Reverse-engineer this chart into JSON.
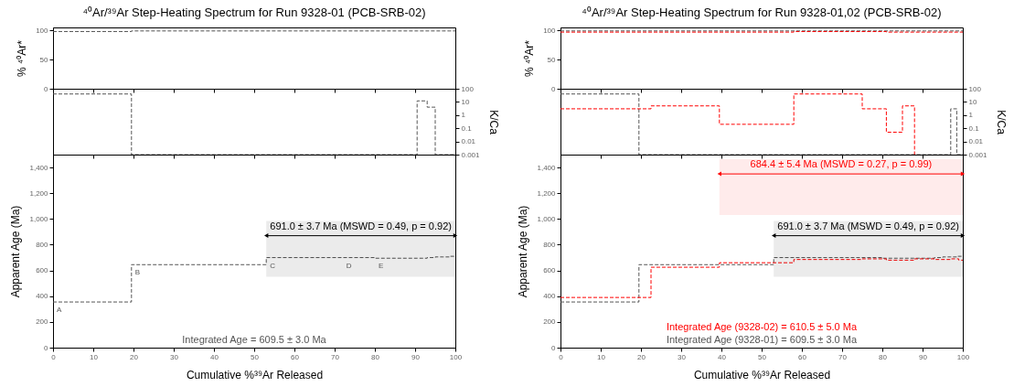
{
  "chart_data": [
    {
      "type": "step",
      "title": "⁴⁰Ar/³⁹Ar Step-Heating Spectrum for Run 9328-01 (PCB-SRB-02)",
      "ylabel": "% ⁴⁰Ar*",
      "xlim": [
        0,
        100
      ],
      "xticks": [
        0,
        10,
        20,
        30,
        40,
        50,
        60,
        70,
        80,
        90,
        100
      ],
      "ylim": [
        0,
        105
      ],
      "yticks": [
        0,
        50,
        100
      ],
      "tick_labels": "y",
      "line_style": "dashed",
      "series": [
        {
          "color": "#555555",
          "x": [
            0,
            19.5,
            53,
            72,
            80,
            87,
            90.5,
            93,
            95,
            97,
            98.5,
            100
          ],
          "values": [
            98,
            99,
            99,
            99,
            99,
            99,
            99,
            99,
            99,
            99,
            99,
            99
          ]
        }
      ]
    },
    {
      "type": "step",
      "ylabel": "K/Ca",
      "xlim": [
        0,
        100
      ],
      "xticks": [
        0,
        10,
        20,
        30,
        40,
        50,
        60,
        70,
        80,
        90,
        100
      ],
      "ylim": [
        0.001,
        100
      ],
      "yticks": [
        100,
        10,
        1,
        0.1,
        0.01,
        0.001
      ],
      "log": true,
      "tick_labels": "y",
      "line_style": "dashed",
      "series": [
        {
          "color": "#555555",
          "x": [
            0,
            19.5,
            53,
            72,
            80,
            87,
            90.5,
            93,
            95,
            97,
            98.5,
            100
          ],
          "values": [
            40,
            0.001,
            0.001,
            0.001,
            0.001,
            0.001,
            12,
            4,
            0.001,
            0.001,
            0.001,
            0.001
          ]
        }
      ]
    },
    {
      "type": "step",
      "xlabel": "Cumulative %³⁹Ar Released",
      "ylabel": "Apparent Age (Ma)",
      "xlim": [
        0,
        100
      ],
      "xticks": [
        0,
        10,
        20,
        30,
        40,
        50,
        60,
        70,
        80,
        90,
        100
      ],
      "ylim": [
        0,
        1500
      ],
      "yticks": [
        0,
        200,
        400,
        600,
        800,
        {
          "value": 1000,
          "label": "1,000"
        },
        {
          "value": 1200,
          "label": "1,200"
        },
        {
          "value": 1400,
          "label": "1,400"
        }
      ],
      "line_style": "dashed",
      "series": [
        {
          "color": "#555555",
          "x": [
            0,
            19.5,
            53,
            72,
            80,
            87,
            90.5,
            93,
            95,
            97,
            98.5,
            100
          ],
          "values": [
            355,
            645,
            700,
            700,
            695,
            695,
            695,
            700,
            705,
            705,
            710,
            710
          ],
          "value_labels": [
            "A",
            "B",
            "C",
            "D",
            "E",
            null,
            null,
            null,
            null,
            null,
            null,
            null
          ]
        }
      ],
      "bands": [
        {
          "axis": "x",
          "from": 53,
          "to": 100,
          "label": "691.0 ± 3.7 Ma (MSWD = 0.49, p = 0.92)",
          "color": "#000000"
        }
      ],
      "annotations": [
        "Integrated Age = 609.5 ± 3.0 Ma"
      ]
    },
    {
      "type": "step",
      "title": "⁴⁰Ar/³⁹Ar Step-Heating Spectrum for Run 9328-01,02 (PCB-SRB-02)",
      "ylabel": "% ⁴⁰Ar*",
      "xlim": [
        0,
        100
      ],
      "xticks": [
        0,
        10,
        20,
        30,
        40,
        50,
        60,
        70,
        80,
        90,
        100
      ],
      "ylim": [
        0,
        105
      ],
      "yticks": [
        0,
        50,
        100
      ],
      "tick_labels": "y",
      "line_style": "dashed",
      "series": [
        {
          "color": "#555555",
          "x": [
            0,
            19.5,
            53,
            72,
            80,
            87,
            90.5,
            93,
            95,
            97,
            98.5,
            100
          ],
          "values": [
            99,
            99,
            99,
            99,
            99,
            99,
            99,
            99,
            99,
            99,
            99,
            99
          ]
        },
        {
          "color": "#ff0000",
          "x": [
            0,
            22.5,
            39.5,
            58,
            75,
            81,
            88,
            93,
            97,
            99,
            100
          ],
          "values": [
            97,
            97,
            97,
            98,
            98,
            97,
            97,
            97,
            97,
            97,
            97
          ]
        }
      ]
    },
    {
      "type": "step",
      "ylabel": "K/Ca",
      "xlim": [
        0,
        100
      ],
      "xticks": [
        0,
        10,
        20,
        30,
        40,
        50,
        60,
        70,
        80,
        90,
        100
      ],
      "ylim": [
        0.001,
        100
      ],
      "yticks": [
        100,
        10,
        1,
        0.1,
        0.01,
        0.001
      ],
      "log": true,
      "tick_labels": "y",
      "line_style": "dashed",
      "series": [
        {
          "color": "#555555",
          "x": [
            0,
            19.5,
            53,
            72,
            80,
            87,
            90.5,
            93,
            95,
            97,
            98.5,
            100
          ],
          "values": [
            40,
            0.001,
            0.001,
            0.001,
            0.001,
            0.001,
            0.001,
            0.001,
            0.001,
            3,
            0.001,
            0.001
          ]
        },
        {
          "color": "#ff0000",
          "x": [
            0,
            22.5,
            39.5,
            58,
            75,
            81,
            85,
            88
          ],
          "values": [
            3,
            5,
            0.2,
            40,
            3,
            0.05,
            5,
            0.001
          ]
        }
      ]
    },
    {
      "type": "step",
      "xlabel": "Cumulative %³⁹Ar Released",
      "ylabel": "Apparent Age (Ma)",
      "xlim": [
        0,
        100
      ],
      "xticks": [
        0,
        10,
        20,
        30,
        40,
        50,
        60,
        70,
        80,
        90,
        100
      ],
      "ylim": [
        0,
        1500
      ],
      "yticks": [
        0,
        200,
        400,
        600,
        800,
        {
          "value": 1000,
          "label": "1,000"
        },
        {
          "value": 1200,
          "label": "1,200"
        },
        {
          "value": 1400,
          "label": "1,400"
        }
      ],
      "line_style": "dashed",
      "series": [
        {
          "color": "#555555",
          "x": [
            0,
            19.5,
            53,
            72,
            80,
            87,
            90.5,
            93,
            95,
            97,
            98.5,
            100
          ],
          "values": [
            355,
            645,
            700,
            700,
            695,
            695,
            695,
            700,
            705,
            705,
            710,
            710
          ]
        },
        {
          "color": "#ff0000",
          "x": [
            0,
            22.5,
            39.5,
            58,
            75,
            81,
            88,
            93,
            97,
            99,
            100
          ],
          "values": [
            390,
            625,
            660,
            685,
            690,
            680,
            690,
            685,
            690,
            680,
            680
          ]
        }
      ],
      "bands": [
        {
          "axis": "x",
          "from": 53,
          "to": 100,
          "label": "691.0 ± 3.7 Ma (MSWD = 0.49, p = 0.92)",
          "color": "#000000"
        },
        {
          "axis": "x",
          "from": 39.5,
          "to": 100,
          "label": "684.4 ± 5.4 Ma (MSWD = 0.27, p = 0.99)",
          "color": "#ff0000"
        }
      ],
      "annotations": [
        "Integrated Age (9328-02) = 610.5 ± 5.0 Ma",
        "Integrated Age (9328-01) = 609.5 ± 3.0 Ma"
      ]
    }
  ]
}
